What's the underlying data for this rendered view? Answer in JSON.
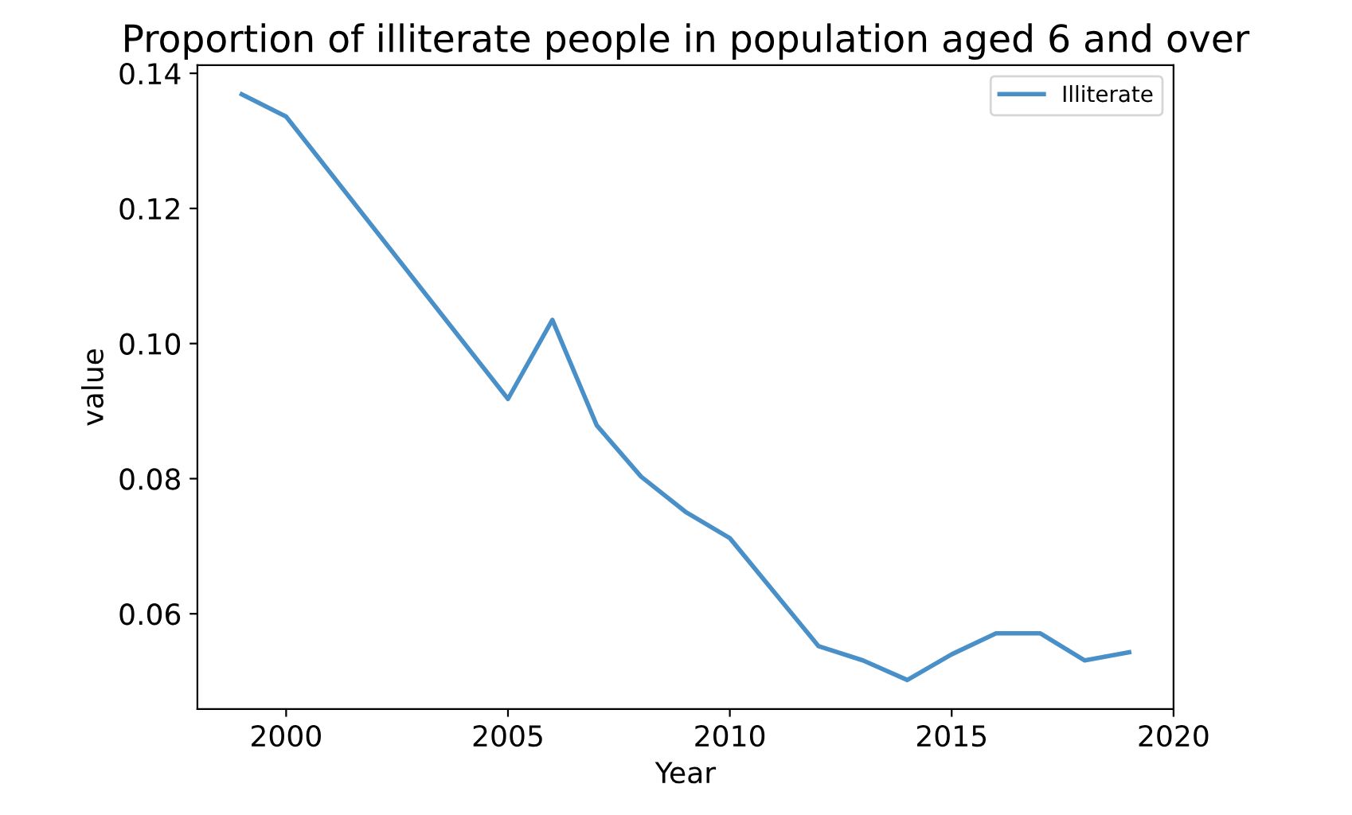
{
  "chart_data": {
    "type": "line",
    "title": "Proportion of illiterate people in population aged 6 and over",
    "xlabel": "Year",
    "ylabel": "value",
    "x": [
      1999,
      2000,
      2005,
      2006,
      2007,
      2008,
      2009,
      2010,
      2012,
      2013,
      2014,
      2015,
      2016,
      2017,
      2018,
      2019
    ],
    "series": [
      {
        "name": "Illiterate",
        "color": "#4a90c8",
        "values": [
          0.1369,
          0.1336,
          0.0918,
          0.1035,
          0.0879,
          0.0803,
          0.0751,
          0.0712,
          0.0552,
          0.0531,
          0.0502,
          0.054,
          0.0571,
          0.0571,
          0.0531,
          0.0543
        ]
      }
    ],
    "xlim": [
      1998,
      2020
    ],
    "xticks": [
      2000,
      2005,
      2010,
      2015,
      2020
    ],
    "ylim": [
      0.0459,
      0.1412
    ],
    "yticks": [
      {
        "value": 0.06,
        "label": "0.06"
      },
      {
        "value": 0.08,
        "label": "0.08"
      },
      {
        "value": 0.1,
        "label": "0.10"
      },
      {
        "value": 0.12,
        "label": "0.12"
      },
      {
        "value": 0.14,
        "label": "0.14"
      }
    ],
    "legend": "top right",
    "grid": false
  }
}
